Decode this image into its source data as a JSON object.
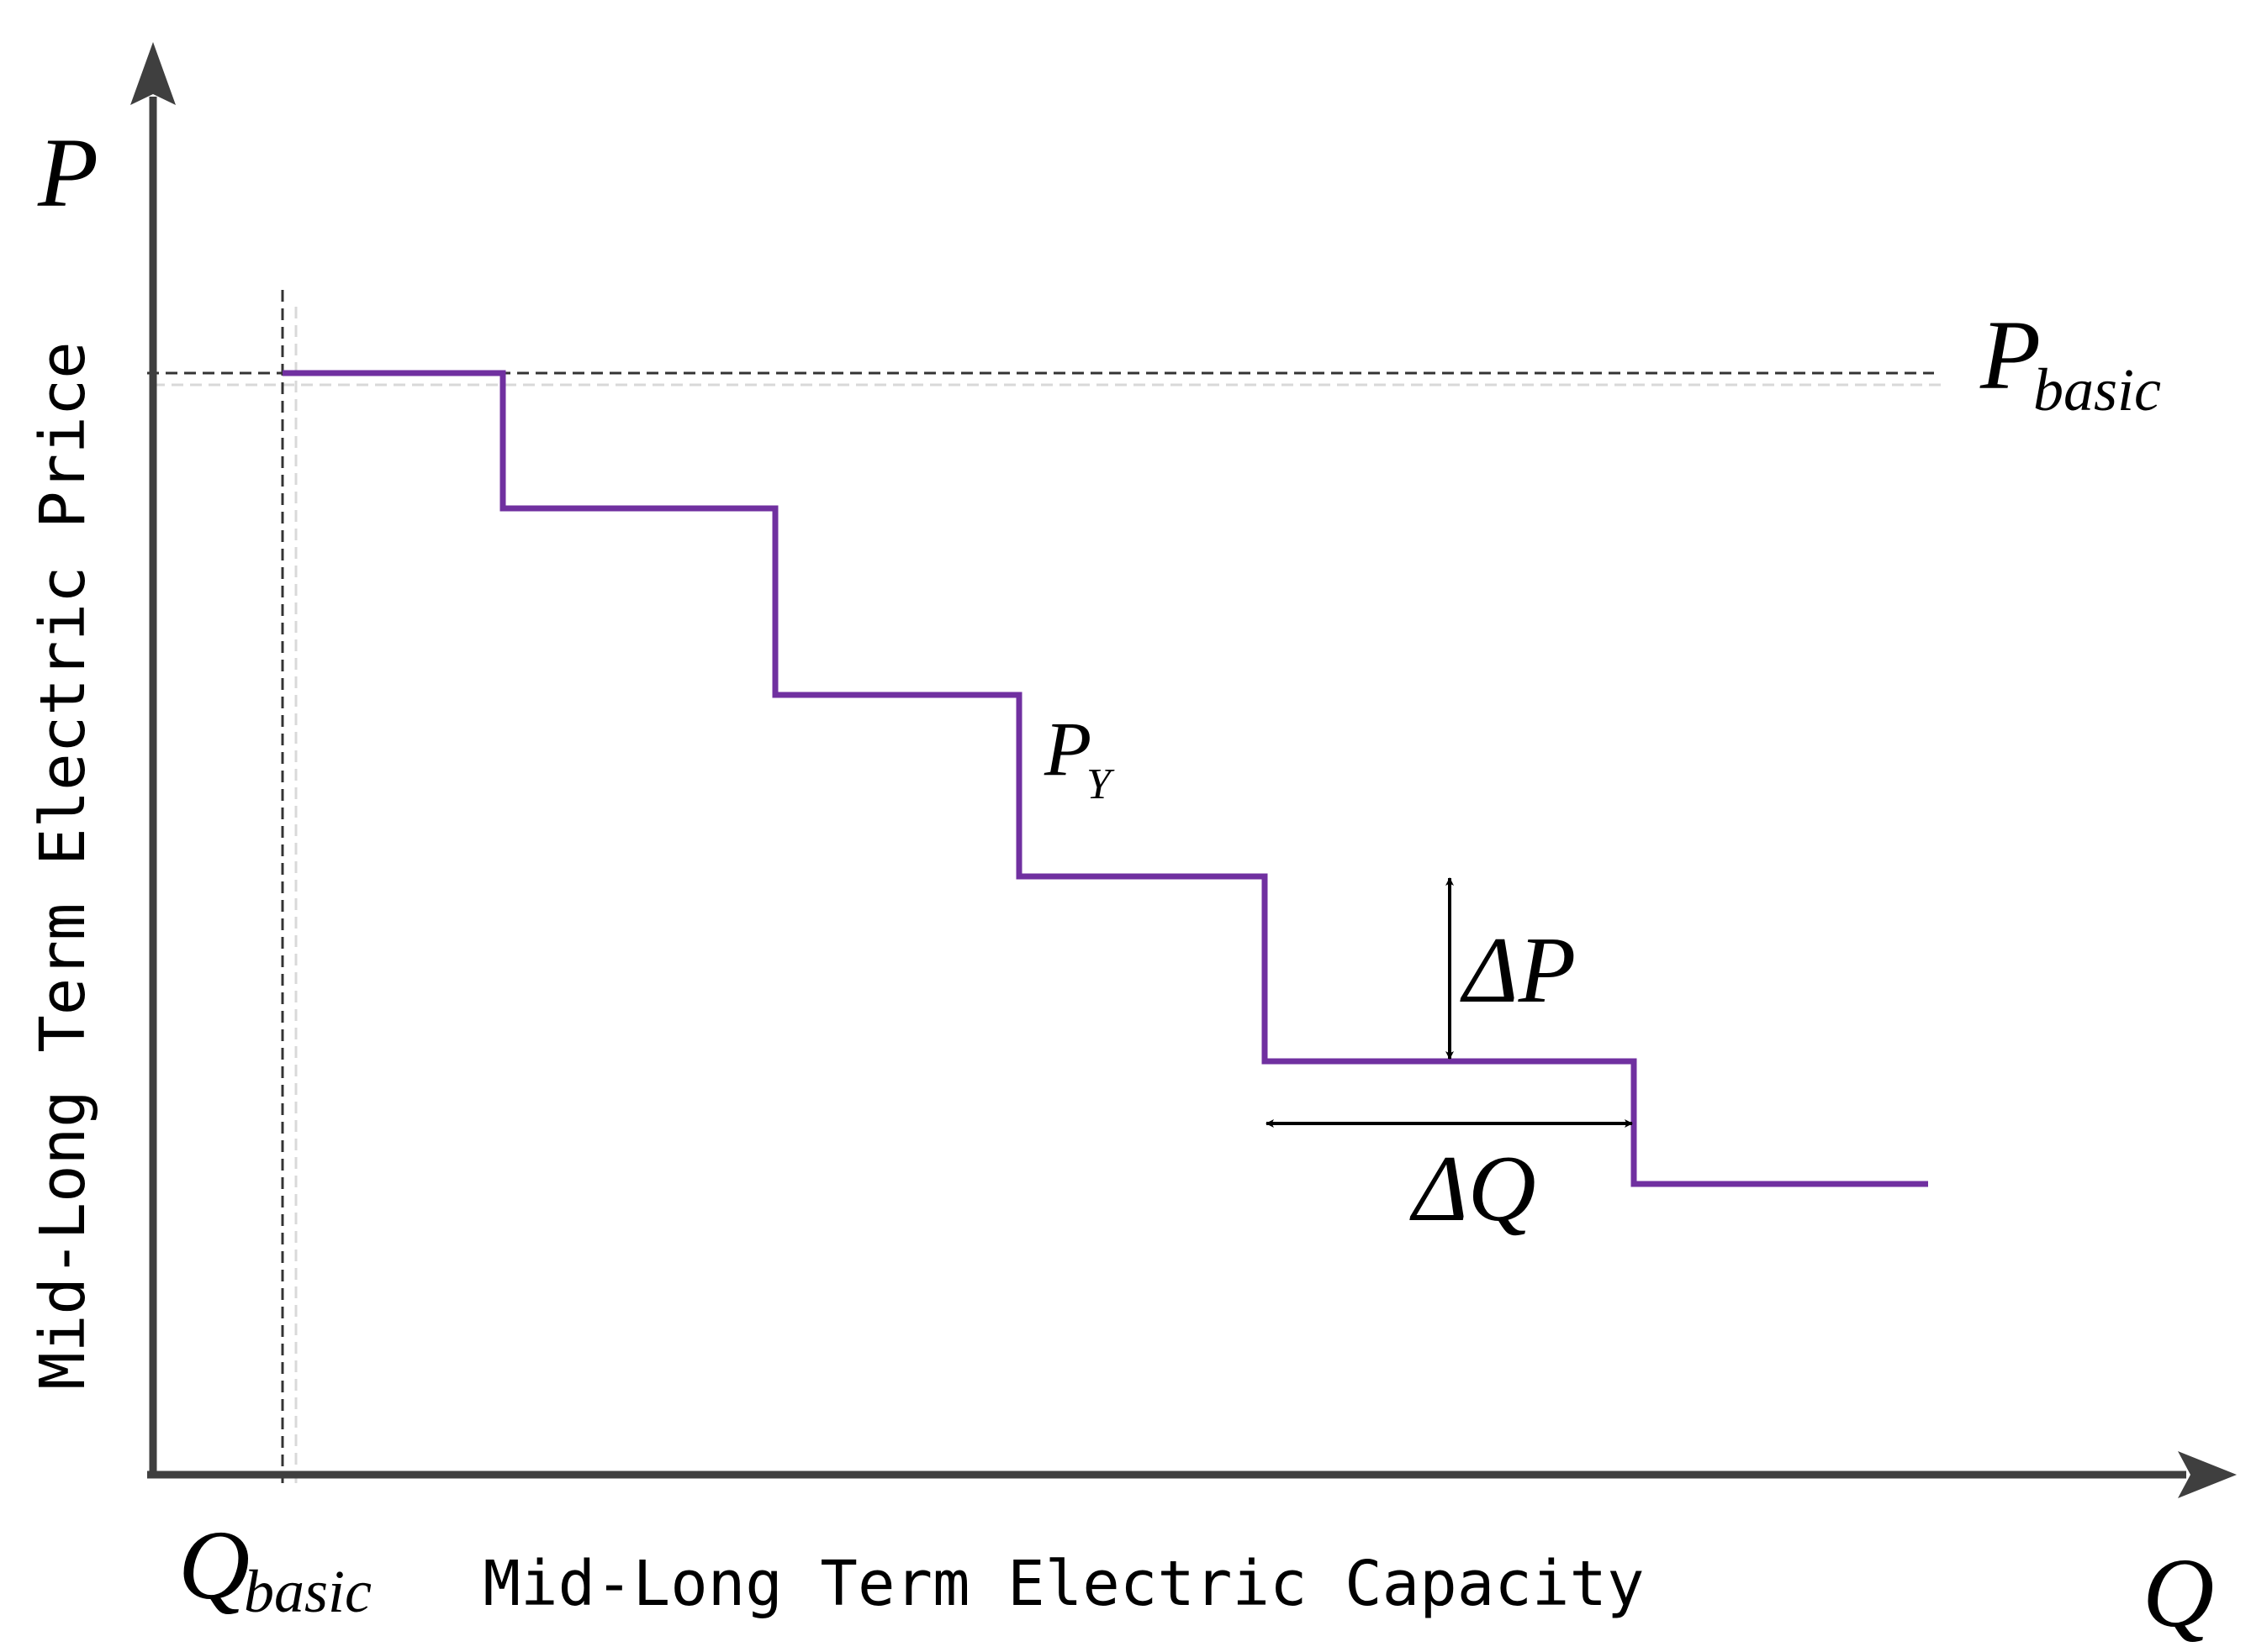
{
  "axes": {
    "y_symbol": "P",
    "x_symbol": "Q",
    "y_title": "Mid-Long Term Electric Price",
    "x_title": "Mid-Long Term Electric Capacity"
  },
  "labels": {
    "p_basic_main": "P",
    "p_basic_sub": "basic",
    "q_basic_main": "Q",
    "q_basic_sub": "basic",
    "py_main": "P",
    "py_sub": "Y",
    "delta_p": "ΔP",
    "delta_q": "ΔQ"
  },
  "colors": {
    "axis": "#3f3f3f",
    "step": "#7030a0",
    "guide": "#333333",
    "guide_shadow": "#d9d9d9",
    "arrow": "#000000",
    "text": "#000000"
  }
}
